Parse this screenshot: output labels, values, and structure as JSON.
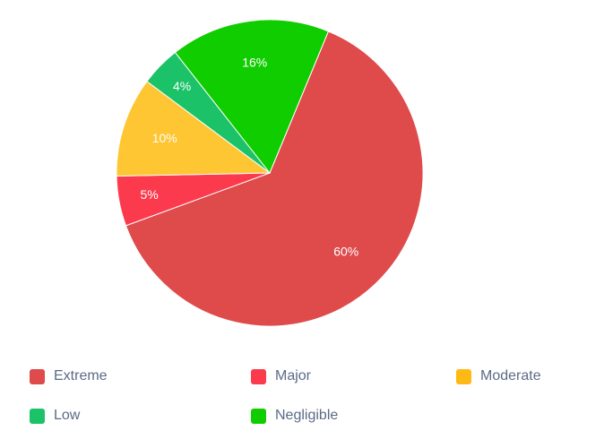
{
  "chart_data": {
    "type": "pie",
    "title": "",
    "categories": [
      "Extreme",
      "Major",
      "Moderate",
      "Low",
      "Negligible"
    ],
    "values": [
      60,
      5,
      10,
      4,
      16
    ],
    "labels": [
      "60%",
      "5%",
      "10%",
      "4%",
      "16%"
    ],
    "colors": [
      "#df4a4a",
      "#fc3a4e",
      "#fec632",
      "#1bc268",
      "#10cd00"
    ],
    "legend_position": "bottom"
  },
  "legend": {
    "items": [
      {
        "label": "Extreme",
        "color": "#df4a4a"
      },
      {
        "label": "Major",
        "color": "#fc3a4e"
      },
      {
        "label": "Moderate",
        "color": "#ffb915"
      },
      {
        "label": "Low",
        "color": "#1bc268"
      },
      {
        "label": "Negligible",
        "color": "#10cd00"
      }
    ]
  }
}
